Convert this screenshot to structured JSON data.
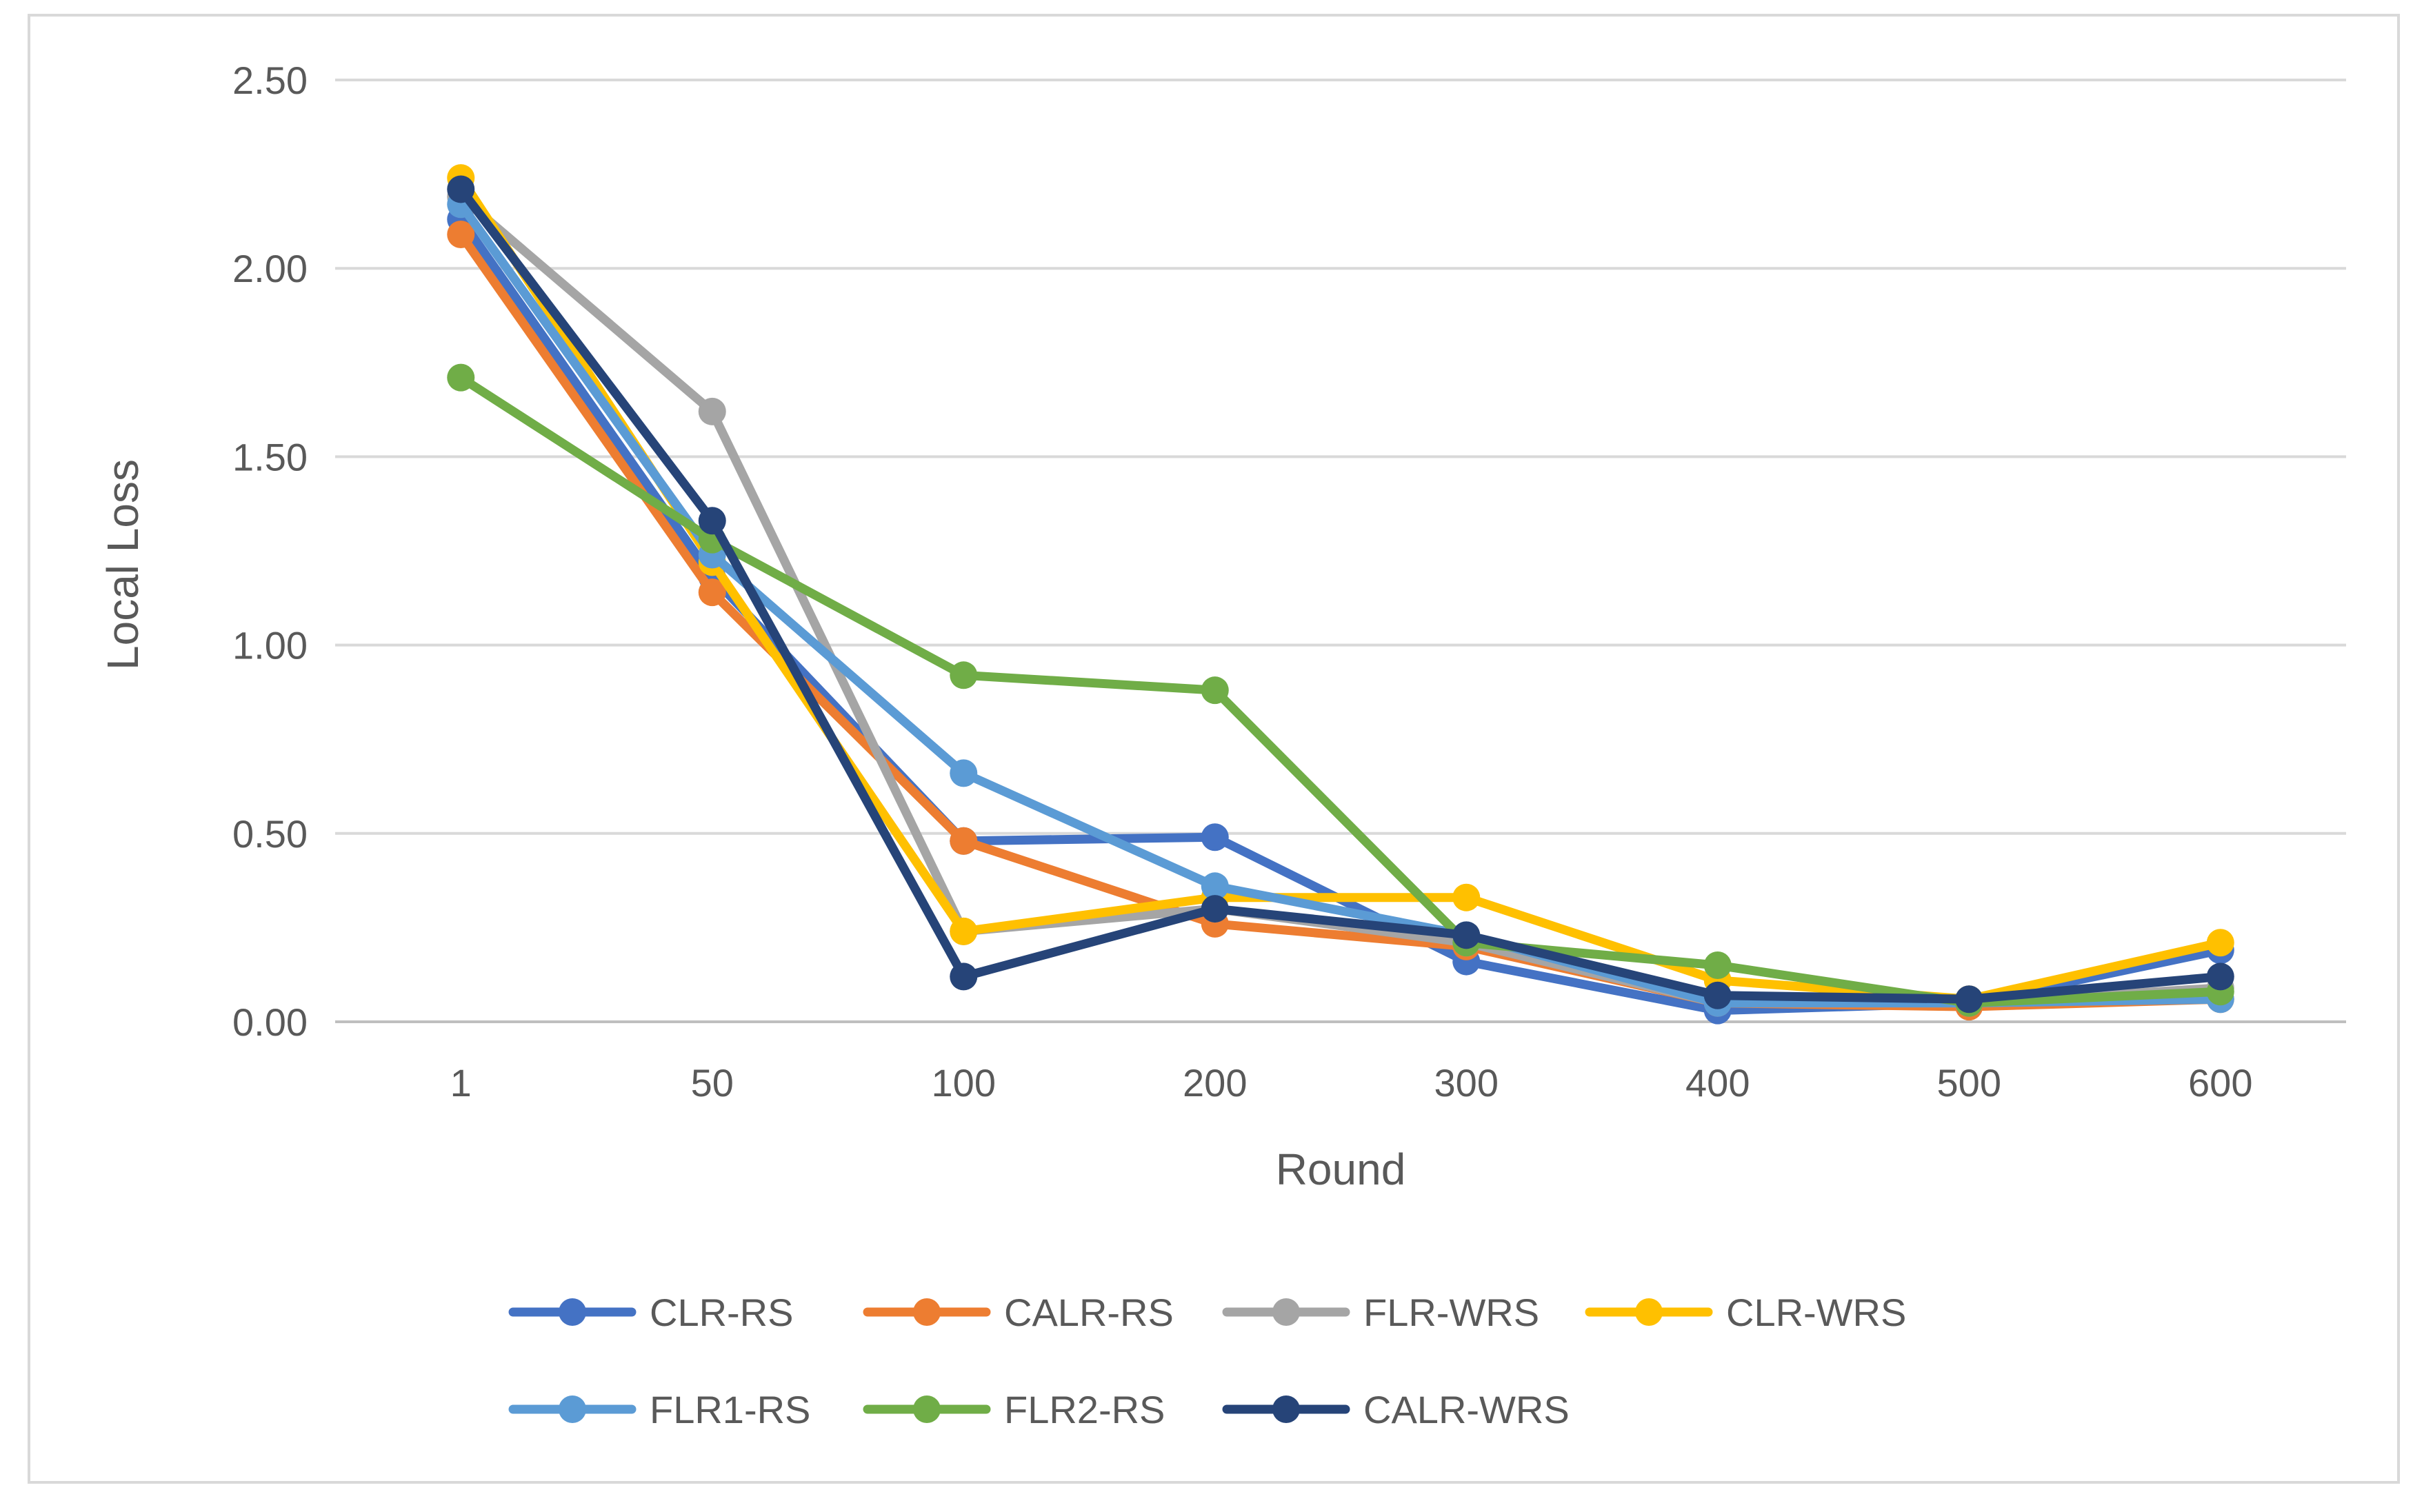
{
  "chart_data": {
    "type": "line",
    "title": "",
    "xlabel": "Round",
    "ylabel": "Local Loss",
    "categories": [
      "1",
      "50",
      "100",
      "200",
      "300",
      "400",
      "500",
      "600"
    ],
    "ylim": [
      0,
      2.5
    ],
    "yticks": [
      "0.00",
      "0.50",
      "1.00",
      "1.50",
      "2.00",
      "2.50"
    ],
    "grid": true,
    "legend_position": "bottom",
    "series": [
      {
        "name": "CLR-RS",
        "color": "#4472c4",
        "values": [
          2.13,
          1.18,
          0.48,
          0.49,
          0.16,
          0.03,
          0.05,
          0.19
        ]
      },
      {
        "name": "CALR-RS",
        "color": "#ed7d31",
        "values": [
          2.09,
          1.14,
          0.48,
          0.26,
          0.2,
          0.05,
          0.04,
          0.06
        ]
      },
      {
        "name": "FLR-WRS",
        "color": "#a5a5a5",
        "values": [
          2.19,
          1.62,
          0.24,
          0.3,
          0.21,
          0.05,
          0.05,
          0.09
        ]
      },
      {
        "name": "CLR-WRS",
        "color": "#ffc000",
        "values": [
          2.24,
          1.22,
          0.24,
          0.33,
          0.33,
          0.11,
          0.06,
          0.21
        ]
      },
      {
        "name": "FLR1-RS",
        "color": "#5b9bd5",
        "values": [
          2.17,
          1.24,
          0.66,
          0.36,
          0.23,
          0.05,
          0.05,
          0.06
        ]
      },
      {
        "name": "FLR2-RS",
        "color": "#70ad47",
        "values": [
          1.71,
          1.28,
          0.92,
          0.88,
          0.21,
          0.15,
          0.05,
          0.08
        ]
      },
      {
        "name": "CALR-WRS",
        "color": "#264478",
        "values": [
          2.21,
          1.33,
          0.12,
          0.3,
          0.23,
          0.07,
          0.06,
          0.12
        ]
      }
    ]
  }
}
